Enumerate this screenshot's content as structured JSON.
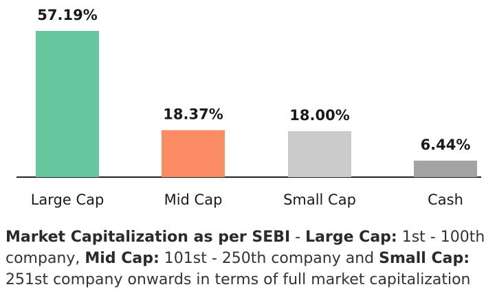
{
  "chart_data": {
    "type": "bar",
    "categories": [
      "Large Cap",
      "Mid Cap",
      "Small Cap",
      "Cash"
    ],
    "values": [
      57.19,
      18.37,
      18.0,
      6.44
    ],
    "data_labels": [
      "57.19%",
      "18.37%",
      "18.00%",
      "6.44%"
    ],
    "colors": [
      "#66c79e",
      "#fc8c63",
      "#cbcbcb",
      "#a3a3a3"
    ],
    "ylim": [
      0,
      57.19
    ],
    "grid": false,
    "title": "",
    "xlabel": "",
    "ylabel": ""
  },
  "footnote": {
    "bold_1": "Market Capitalization as per SEBI",
    "text_1": " - ",
    "bold_2": "Large Cap:",
    "text_2": " 1st - 100th company, ",
    "bold_3": "Mid Cap:",
    "text_3": " 101st - 250th company and ",
    "bold_4": "Small Cap:",
    "text_4": " 251st company onwards in terms of full market capitalization"
  }
}
